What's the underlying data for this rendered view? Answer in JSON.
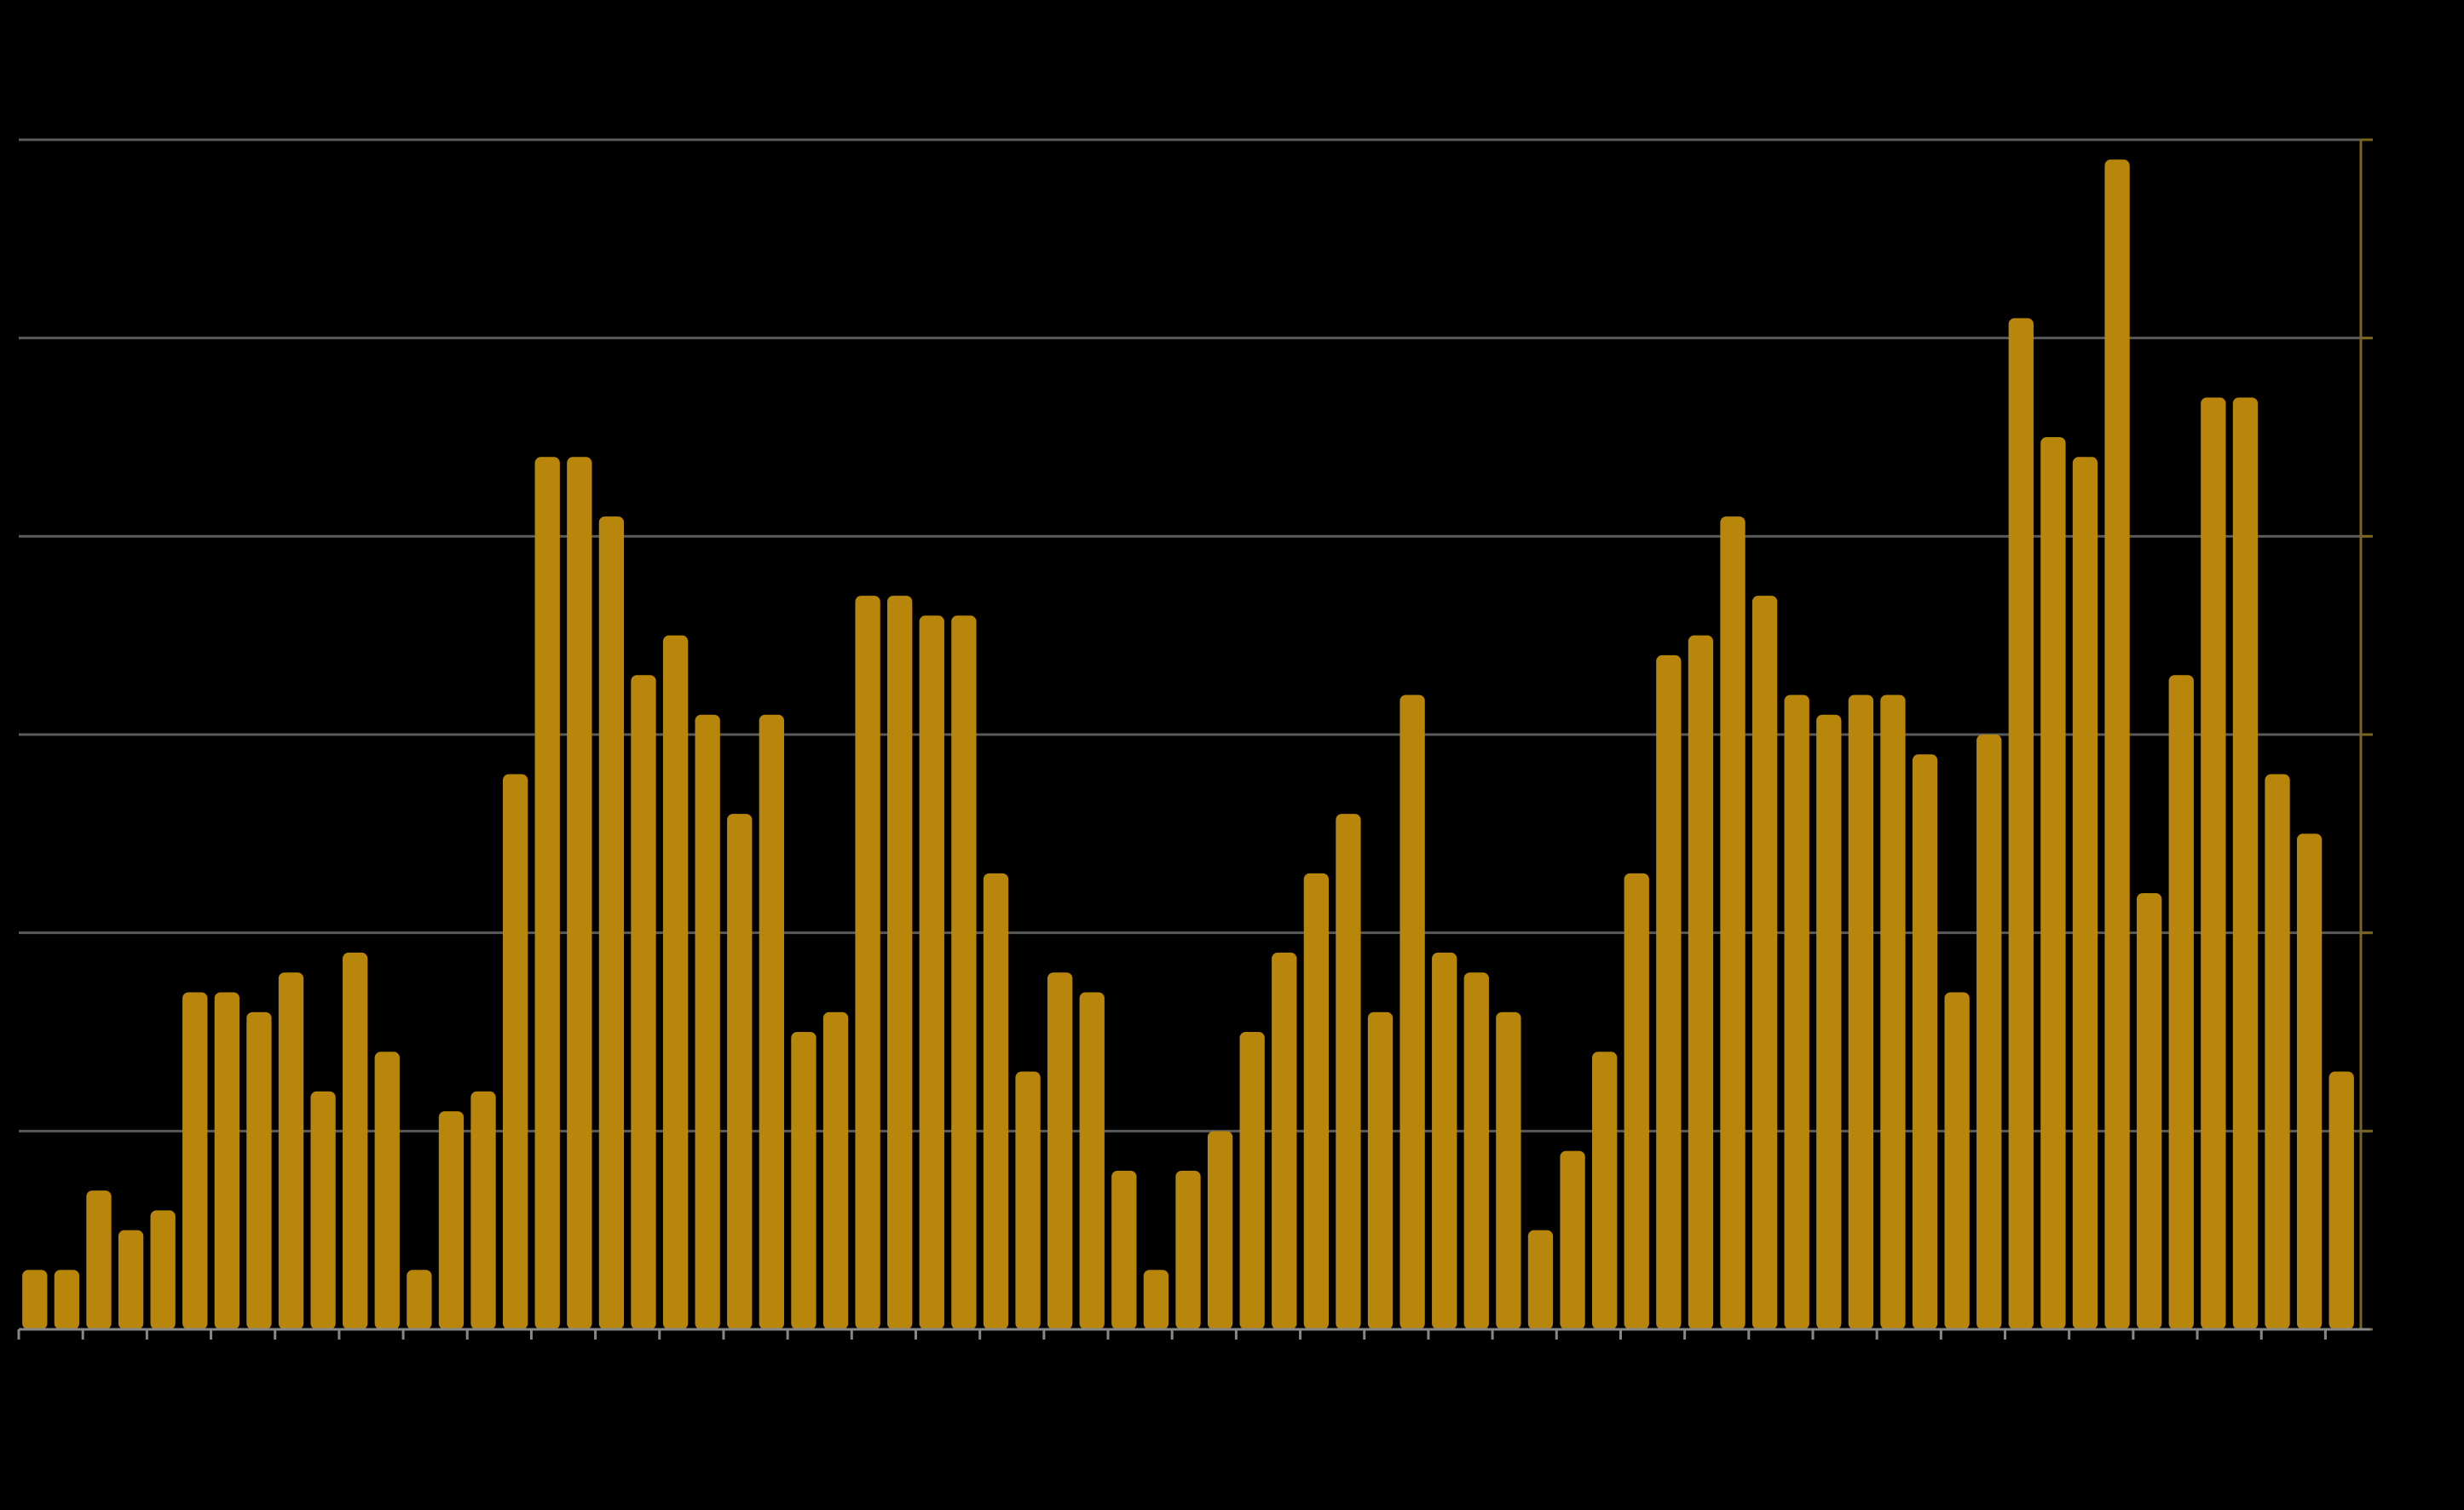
{
  "chart_data": {
    "type": "bar",
    "categories": [
      null,
      null,
      null,
      null,
      null,
      null,
      null,
      null,
      null,
      null,
      null,
      null,
      null,
      null,
      null,
      null,
      null,
      null,
      null,
      null,
      null,
      null,
      null,
      null,
      null,
      null,
      null,
      null,
      null,
      null,
      null,
      null,
      null,
      null,
      null,
      null,
      null,
      null,
      null,
      null,
      null,
      null,
      null,
      null,
      null,
      null,
      null,
      null,
      null,
      null,
      null,
      null,
      null,
      null,
      null,
      null,
      null,
      null,
      null,
      null,
      null,
      null,
      null,
      null,
      null,
      null,
      null,
      null,
      null,
      null,
      null,
      null,
      null
    ],
    "values": [
      3,
      3,
      7,
      5,
      6,
      17,
      17,
      16,
      18,
      12,
      19,
      14,
      3,
      11,
      12,
      28,
      44,
      44,
      41,
      33,
      35,
      31,
      26,
      31,
      15,
      16,
      37,
      37,
      36,
      36,
      23,
      13,
      18,
      17,
      8,
      3,
      8,
      10,
      15,
      19,
      23,
      26,
      16,
      32,
      19,
      18,
      16,
      5,
      9,
      14,
      23,
      34,
      35,
      41,
      37,
      32,
      31,
      32,
      32,
      29,
      17,
      30,
      51,
      45,
      44,
      59,
      22,
      33,
      47,
      47,
      28,
      25,
      13
    ],
    "color": "#b8860b",
    "ylim": [
      0,
      60
    ],
    "yticks": [
      0,
      10,
      20,
      30,
      40,
      50,
      60
    ],
    "grid": true
  }
}
